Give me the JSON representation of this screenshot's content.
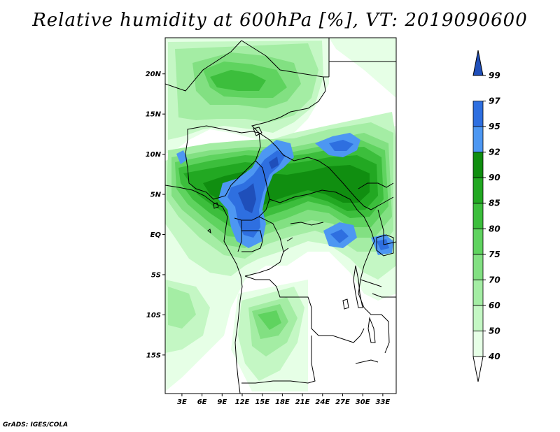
{
  "title": "Relative humidity at 600hPa [%], VT: 2019090600",
  "credit": "GrADS: IGES/COLA",
  "colors": {
    "background": "#ffffff",
    "land_low": "#ffffff",
    "rh_50": "#e6ffe6",
    "rh_60": "#c4f7c4",
    "rh_70": "#a4eda4",
    "rh_75": "#82e082",
    "rh_80": "#5fd35f",
    "rh_85": "#3cbe3c",
    "rh_90": "#22a822",
    "rh_92": "#108e10",
    "rh_95": "#4d97f2",
    "rh_97": "#2e6fe0",
    "rh_99": "#1f4fba",
    "borders": "#000000"
  },
  "map": {
    "lat_labels": [
      "20N",
      "15N",
      "10N",
      "5N",
      "EQ",
      "5S",
      "10S",
      "15S"
    ],
    "lon_labels": [
      "3E",
      "6E",
      "9E",
      "12E",
      "15E",
      "18E",
      "21E",
      "24E",
      "27E",
      "30E",
      "33E"
    ],
    "lat_values": [
      20,
      15,
      10,
      5,
      0,
      -5,
      -10,
      -15
    ],
    "lon_values": [
      3,
      6,
      9,
      12,
      15,
      18,
      21,
      24,
      27,
      30,
      33
    ],
    "lon_range": [
      0.5,
      35
    ],
    "lat_range": [
      -19.8,
      24.5
    ]
  },
  "colorbar": {
    "levels": [
      "40",
      "50",
      "60",
      "70",
      "75",
      "80",
      "85",
      "90",
      "92",
      "95",
      "97",
      "99"
    ],
    "fills": [
      "#ffffff",
      "#e6ffe6",
      "#c4f7c4",
      "#a4eda4",
      "#82e082",
      "#5fd35f",
      "#3cbe3c",
      "#22a822",
      "#108e10",
      "#4d97f2",
      "#2e6fe0",
      "#1f4fba"
    ]
  },
  "icons": {
    "colorbar_top": "triangle-up-icon",
    "colorbar_bottom": "triangle-down-icon"
  }
}
